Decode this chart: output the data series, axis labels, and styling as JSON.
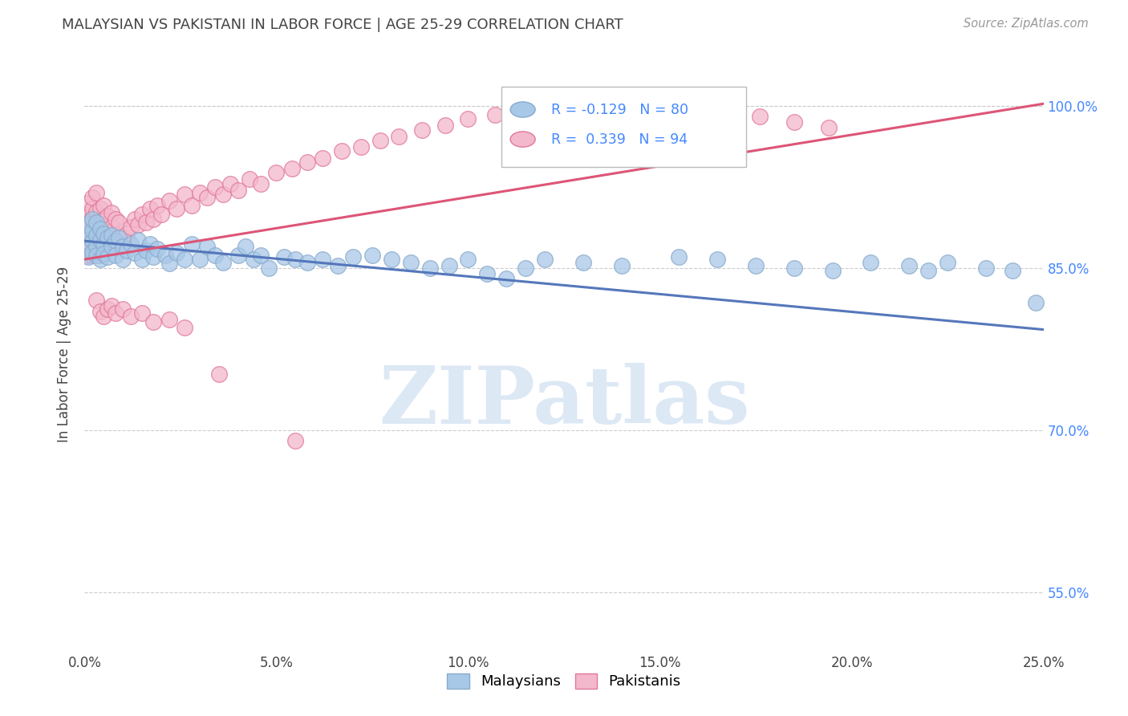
{
  "title": "MALAYSIAN VS PAKISTANI IN LABOR FORCE | AGE 25-29 CORRELATION CHART",
  "source": "Source: ZipAtlas.com",
  "xlabel_ticks": [
    "0.0%",
    "5.0%",
    "10.0%",
    "15.0%",
    "20.0%",
    "25.0%"
  ],
  "ylabel_ticks": [
    "55.0%",
    "70.0%",
    "85.0%",
    "100.0%"
  ],
  "ylabel_label": "In Labor Force | Age 25-29",
  "legend_labels": [
    "Malaysians",
    "Pakistanis"
  ],
  "r_malaysian": -0.129,
  "n_malaysian": 80,
  "r_pakistani": 0.339,
  "n_pakistani": 94,
  "color_malaysian": "#a8c8e8",
  "color_pakistani": "#f4b8cc",
  "color_edge_malaysian": "#88aacc",
  "color_edge_pakistani": "#e07898",
  "color_line_malaysian": "#5577bb",
  "color_line_pakistani": "#dd5577",
  "watermark": "ZIPatlas",
  "watermark_color": "#dde8f5",
  "background_color": "#ffffff",
  "grid_color": "#cccccc",
  "title_color": "#444444",
  "right_tick_color": "#4488ff",
  "xmin": 0.0,
  "xmax": 0.25,
  "ymin": 0.495,
  "ymax": 1.045,
  "line_m_x0": 0.0,
  "line_m_y0": 0.875,
  "line_m_x1": 0.25,
  "line_m_y1": 0.793,
  "line_p_x0": 0.0,
  "line_p_y0": 0.858,
  "line_p_x1": 0.25,
  "line_p_y1": 1.002,
  "malaysian_x": [
    0.001,
    0.001,
    0.001,
    0.001,
    0.002,
    0.002,
    0.002,
    0.002,
    0.003,
    0.003,
    0.003,
    0.003,
    0.004,
    0.004,
    0.004,
    0.005,
    0.005,
    0.005,
    0.006,
    0.006,
    0.007,
    0.007,
    0.008,
    0.008,
    0.009,
    0.01,
    0.01,
    0.011,
    0.012,
    0.013,
    0.014,
    0.015,
    0.016,
    0.017,
    0.018,
    0.019,
    0.021,
    0.022,
    0.024,
    0.026,
    0.028,
    0.03,
    0.032,
    0.034,
    0.036,
    0.04,
    0.042,
    0.044,
    0.046,
    0.048,
    0.052,
    0.055,
    0.058,
    0.062,
    0.066,
    0.07,
    0.075,
    0.08,
    0.085,
    0.09,
    0.095,
    0.1,
    0.105,
    0.11,
    0.115,
    0.12,
    0.13,
    0.14,
    0.155,
    0.165,
    0.175,
    0.185,
    0.195,
    0.205,
    0.215,
    0.22,
    0.225,
    0.235,
    0.242,
    0.248
  ],
  "malaysian_y": [
    0.87,
    0.88,
    0.89,
    0.86,
    0.875,
    0.885,
    0.895,
    0.865,
    0.87,
    0.88,
    0.892,
    0.862,
    0.876,
    0.886,
    0.858,
    0.872,
    0.882,
    0.863,
    0.878,
    0.86,
    0.88,
    0.87,
    0.875,
    0.862,
    0.878,
    0.87,
    0.858,
    0.866,
    0.872,
    0.864,
    0.876,
    0.858,
    0.866,
    0.872,
    0.86,
    0.868,
    0.862,
    0.854,
    0.864,
    0.858,
    0.872,
    0.858,
    0.87,
    0.862,
    0.855,
    0.862,
    0.87,
    0.858,
    0.862,
    0.85,
    0.86,
    0.858,
    0.855,
    0.858,
    0.852,
    0.86,
    0.862,
    0.858,
    0.855,
    0.85,
    0.852,
    0.858,
    0.845,
    0.84,
    0.85,
    0.858,
    0.855,
    0.852,
    0.86,
    0.858,
    0.852,
    0.85,
    0.848,
    0.855,
    0.852,
    0.848,
    0.855,
    0.85,
    0.848,
    0.818
  ],
  "pakistani_x": [
    0.001,
    0.001,
    0.001,
    0.001,
    0.001,
    0.001,
    0.002,
    0.002,
    0.002,
    0.002,
    0.002,
    0.002,
    0.003,
    0.003,
    0.003,
    0.003,
    0.003,
    0.004,
    0.004,
    0.004,
    0.004,
    0.005,
    0.005,
    0.005,
    0.005,
    0.006,
    0.006,
    0.006,
    0.007,
    0.007,
    0.008,
    0.008,
    0.009,
    0.009,
    0.01,
    0.011,
    0.012,
    0.013,
    0.014,
    0.015,
    0.016,
    0.017,
    0.018,
    0.019,
    0.02,
    0.022,
    0.024,
    0.026,
    0.028,
    0.03,
    0.032,
    0.034,
    0.036,
    0.038,
    0.04,
    0.043,
    0.046,
    0.05,
    0.054,
    0.058,
    0.062,
    0.067,
    0.072,
    0.077,
    0.082,
    0.088,
    0.094,
    0.1,
    0.107,
    0.114,
    0.121,
    0.128,
    0.136,
    0.144,
    0.152,
    0.16,
    0.168,
    0.176,
    0.185,
    0.194,
    0.003,
    0.004,
    0.005,
    0.006,
    0.007,
    0.008,
    0.01,
    0.012,
    0.015,
    0.018,
    0.022,
    0.026,
    0.035,
    0.055
  ],
  "pakistani_y": [
    0.87,
    0.88,
    0.892,
    0.862,
    0.9,
    0.91,
    0.875,
    0.886,
    0.897,
    0.862,
    0.905,
    0.915,
    0.878,
    0.89,
    0.902,
    0.862,
    0.92,
    0.88,
    0.893,
    0.905,
    0.862,
    0.882,
    0.895,
    0.908,
    0.865,
    0.885,
    0.898,
    0.868,
    0.888,
    0.901,
    0.872,
    0.895,
    0.878,
    0.892,
    0.878,
    0.882,
    0.888,
    0.895,
    0.89,
    0.9,
    0.892,
    0.905,
    0.895,
    0.908,
    0.9,
    0.912,
    0.905,
    0.918,
    0.908,
    0.92,
    0.915,
    0.925,
    0.918,
    0.928,
    0.922,
    0.932,
    0.928,
    0.938,
    0.942,
    0.948,
    0.952,
    0.958,
    0.962,
    0.968,
    0.972,
    0.978,
    0.982,
    0.988,
    0.992,
    0.995,
    0.998,
    1.0,
    0.995,
    0.998,
    0.992,
    0.988,
    0.995,
    0.99,
    0.985,
    0.98,
    0.82,
    0.81,
    0.805,
    0.812,
    0.815,
    0.808,
    0.812,
    0.805,
    0.808,
    0.8,
    0.802,
    0.795,
    0.752,
    0.69
  ]
}
